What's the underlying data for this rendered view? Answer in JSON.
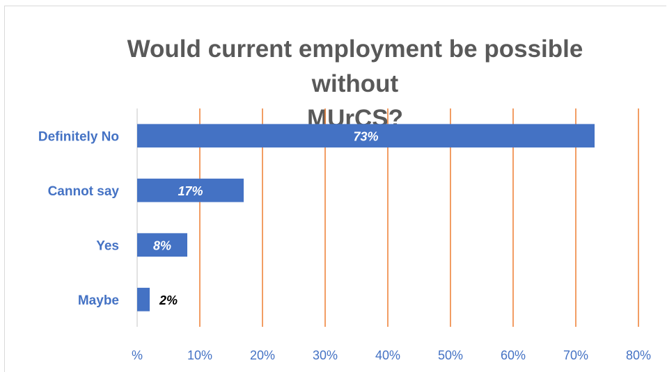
{
  "chart_data": {
    "type": "bar",
    "orientation": "horizontal",
    "title": "Would current employment be possible without\nMUrCS?",
    "categories": [
      "Definitely No",
      "Cannot say",
      "Yes",
      "Maybe"
    ],
    "values": [
      73,
      17,
      8,
      2
    ],
    "data_labels": [
      "73%",
      "17%",
      "8%",
      "2%"
    ],
    "xlim": [
      0,
      80
    ],
    "x_ticks": [
      "%",
      "10%",
      "20%",
      "30%",
      "40%",
      "50%",
      "60%",
      "70%",
      "80%"
    ],
    "grid": "vertical",
    "legend": "none",
    "colors": {
      "bar": "#4472c4",
      "grid": "#ed7d31",
      "title": "#595959",
      "label_inside": "#ffffff",
      "label_outside": "#000000"
    }
  }
}
